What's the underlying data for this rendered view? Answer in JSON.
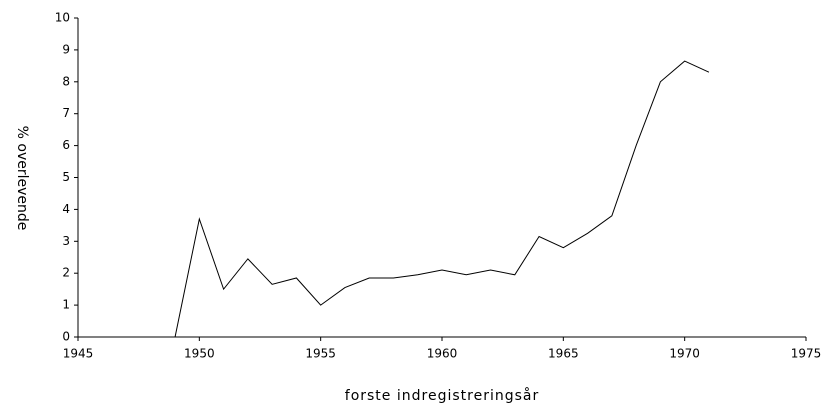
{
  "chart_data": {
    "type": "line",
    "xlabel": "forste indregistreringsår",
    "ylabel": "% overlevende",
    "x": [
      1949,
      1950,
      1951,
      1952,
      1953,
      1954,
      1955,
      1956,
      1957,
      1958,
      1959,
      1960,
      1961,
      1962,
      1963,
      1964,
      1965,
      1966,
      1967,
      1968,
      1969,
      1970,
      1971
    ],
    "series": [
      {
        "color": "#000000",
        "values": [
          0,
          3.7,
          1.5,
          2.45,
          1.65,
          1.85,
          1.0,
          1.55,
          1.85,
          1.85,
          1.95,
          2.1,
          1.95,
          2.1,
          1.95,
          3.15,
          2.8,
          3.25,
          3.8,
          6.0,
          8.0,
          8.65,
          8.3
        ]
      }
    ],
    "xlim": [
      1945,
      1975
    ],
    "xticks": [
      1945,
      1950,
      1955,
      1960,
      1965,
      1970,
      1975
    ],
    "ylim": [
      0,
      10
    ],
    "yticks": [
      0,
      1,
      2,
      3,
      4,
      5,
      6,
      7,
      8,
      9,
      10
    ],
    "grid": false
  }
}
